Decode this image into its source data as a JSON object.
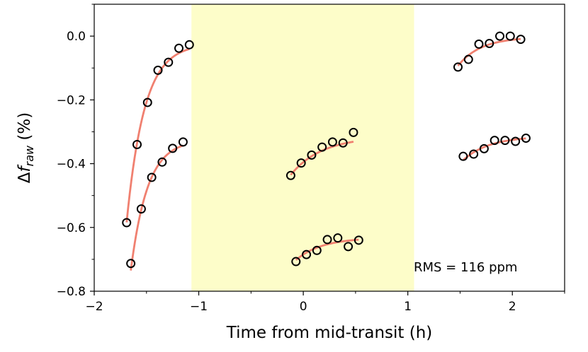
{
  "chart_data": {
    "type": "scatter",
    "xlabel": "Time from mid-transit (h)",
    "ylabel": {
      "prefix": "Δ",
      "symbol": "f",
      "subscript": "raw",
      "suffix": " (%)"
    },
    "xlim": [
      -2.0,
      2.5
    ],
    "ylim": [
      -0.8,
      0.1
    ],
    "xticks": [
      -2,
      -1,
      0,
      1,
      2
    ],
    "xtick_labels": [
      "−2",
      "−1",
      "0",
      "1",
      "2"
    ],
    "yticks": [
      0.0,
      -0.2,
      -0.4,
      -0.6,
      -0.8
    ],
    "ytick_labels": [
      "0.0",
      "−0.2",
      "−0.4",
      "−0.6",
      "−0.8"
    ],
    "grid": false,
    "shaded_region": {
      "x_start": -1.07,
      "x_end": 1.06,
      "color": "#fdfdc9"
    },
    "marker_color": "#000000",
    "fit_color": "#f08070",
    "annotation": "RMS = 116 ppm",
    "series": [
      {
        "x": [
          -1.69,
          -1.59,
          -1.49,
          -1.39,
          -1.29,
          -1.19,
          -1.09
        ],
        "y": [
          -0.585,
          -0.34,
          -0.208,
          -0.107,
          -0.082,
          -0.038,
          -0.027
        ],
        "fit": {
          "a": -0.024,
          "b": 0.56,
          "tau": 0.17,
          "x0": -1.69,
          "x1": -1.09
        }
      },
      {
        "x": [
          -1.65,
          -1.55,
          -1.45,
          -1.35,
          -1.25,
          -1.15
        ],
        "y": [
          -0.713,
          -0.542,
          -0.443,
          -0.395,
          -0.352,
          -0.332
        ],
        "fit": {
          "a": -0.325,
          "b": 0.41,
          "tau": 0.16,
          "x0": -1.65,
          "x1": -1.15
        }
      },
      {
        "x": [
          -0.12,
          -0.02,
          0.08,
          0.18,
          0.28,
          0.38,
          0.48
        ],
        "y": [
          -0.437,
          -0.398,
          -0.373,
          -0.348,
          -0.332,
          -0.335,
          -0.302
        ],
        "fit": {
          "a": -0.315,
          "b": 0.12,
          "tau": 0.3,
          "x0": -0.12,
          "x1": 0.48
        }
      },
      {
        "x": [
          -0.07,
          0.03,
          0.13,
          0.23,
          0.33,
          0.43,
          0.53
        ],
        "y": [
          -0.707,
          -0.685,
          -0.672,
          -0.638,
          -0.633,
          -0.66,
          -0.64
        ],
        "fit": {
          "a": -0.632,
          "b": 0.07,
          "tau": 0.25,
          "x0": -0.07,
          "x1": 0.53
        }
      },
      {
        "x": [
          1.48,
          1.58,
          1.68,
          1.78,
          1.88,
          1.98,
          2.08
        ],
        "y": [
          -0.097,
          -0.073,
          -0.025,
          -0.023,
          0.0,
          0.0,
          -0.01
        ],
        "fit": {
          "a": -0.003,
          "b": 0.09,
          "tau": 0.22,
          "x0": 1.48,
          "x1": 2.08
        }
      },
      {
        "x": [
          1.53,
          1.63,
          1.73,
          1.83,
          1.93,
          2.03,
          2.13
        ],
        "y": [
          -0.377,
          -0.37,
          -0.353,
          -0.327,
          -0.327,
          -0.33,
          -0.32
        ],
        "fit": {
          "a": -0.314,
          "b": 0.075,
          "tau": 0.25,
          "x0": 1.53,
          "x1": 2.13
        }
      }
    ]
  }
}
